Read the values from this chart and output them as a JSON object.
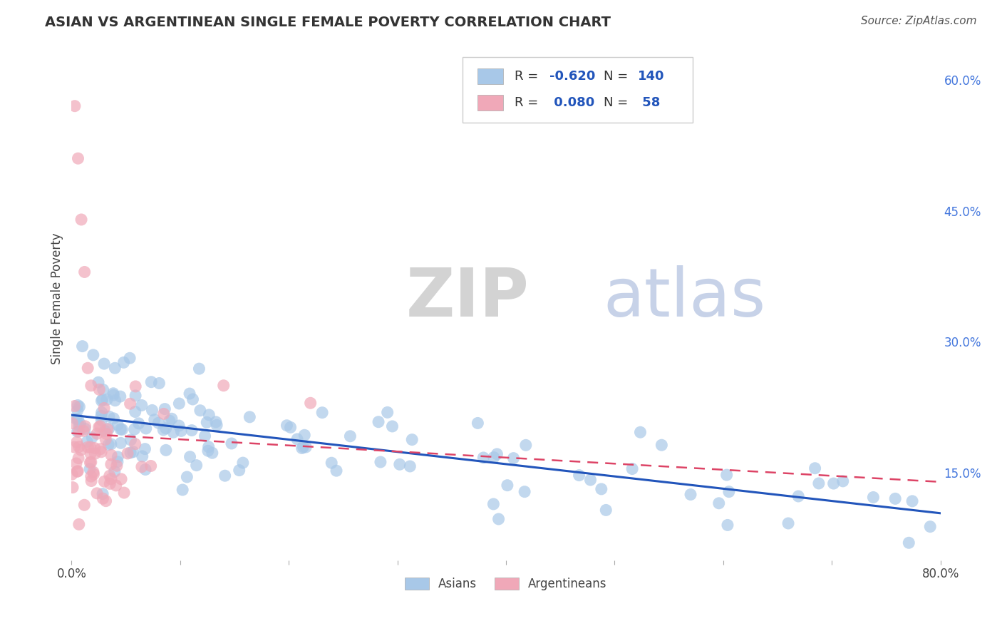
{
  "title": "ASIAN VS ARGENTINEAN SINGLE FEMALE POVERTY CORRELATION CHART",
  "source": "Source: ZipAtlas.com",
  "ylabel": "Single Female Poverty",
  "xlim": [
    0.0,
    0.8
  ],
  "ylim": [
    0.05,
    0.65
  ],
  "asian_color": "#a8c8e8",
  "argentinean_color": "#f0a8b8",
  "asian_line_color": "#2255bb",
  "argentinean_line_color": "#dd4466",
  "grid_color": "#cccccc",
  "background_color": "#ffffff",
  "legend_R_asian": "-0.620",
  "legend_N_asian": "140",
  "legend_R_arg": "0.080",
  "legend_N_arg": "58"
}
